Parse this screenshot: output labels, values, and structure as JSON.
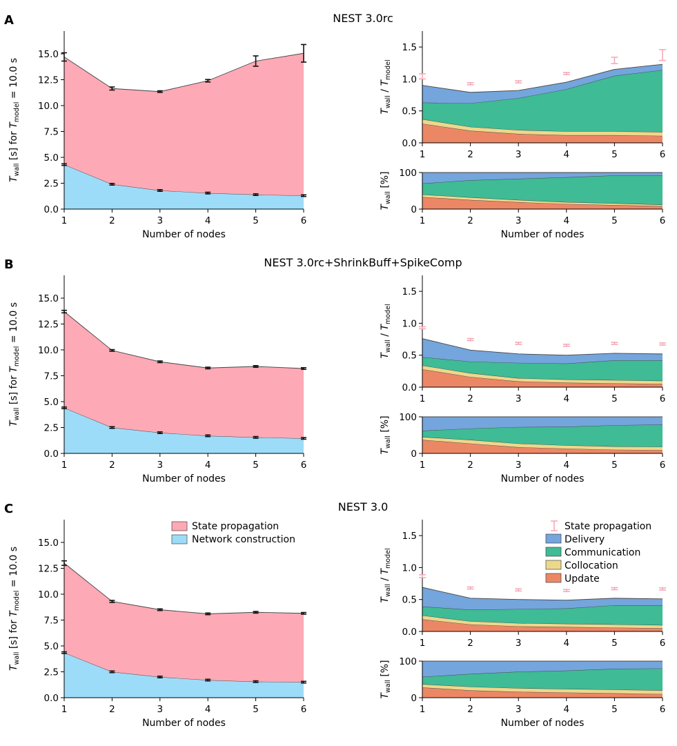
{
  "colors": {
    "state_propagation": "#fea9b6",
    "network_construction": "#9ddcf9",
    "delivery": "#74a5dc",
    "communication": "#3fbb96",
    "collocation": "#ecd88c",
    "update": "#ec8766",
    "errorbar_left": "#111111",
    "errorbar_right": "#f6a8b8",
    "outline": "#444444"
  },
  "shared_labels": {
    "x_label": "Number of nodes",
    "left_y_label": {
      "t": "T",
      "wall": "wall",
      "mid": " [s] for ",
      "t2": "T",
      "model": "model",
      "eq": " = 10.0 s"
    },
    "ratio_y_label": {
      "t": "T",
      "wall": "wall",
      "slash": " / ",
      "t2": "T",
      "model": "model"
    },
    "pct_y_label": {
      "t": "T",
      "wall": "wall",
      "unit": " [%]"
    }
  },
  "legends": {
    "left": [
      "State propagation",
      "Network construction"
    ],
    "right": [
      "State propagation",
      "Delivery",
      "Communication",
      "Collocation",
      "Update"
    ]
  },
  "chart_data": [
    {
      "id": "A-left",
      "panel": "A",
      "title": "NEST 3.0rc",
      "type": "area",
      "x": [
        1,
        2,
        3,
        4,
        5,
        6
      ],
      "xlim": [
        1,
        6
      ],
      "ylim": [
        0,
        17.2
      ],
      "yticks": [
        0.0,
        2.5,
        5.0,
        7.5,
        10.0,
        12.5,
        15.0
      ],
      "ytick_labels": [
        "0.0",
        "2.5",
        "5.0",
        "7.5",
        "10.0",
        "12.5",
        "15.0"
      ],
      "series": [
        {
          "name": "Network construction",
          "values": [
            4.3,
            2.4,
            1.8,
            1.55,
            1.4,
            1.3
          ],
          "err": [
            0.07,
            0.06,
            0.05,
            0.04,
            0.04,
            0.03
          ]
        },
        {
          "name": "State propagation",
          "values": [
            10.4,
            9.25,
            9.55,
            10.85,
            12.9,
            13.75
          ],
          "err": [
            0.4,
            0.15,
            0.08,
            0.12,
            0.5,
            0.85
          ]
        }
      ]
    },
    {
      "id": "A-ratio",
      "panel": "A",
      "type": "area",
      "x": [
        1,
        2,
        3,
        4,
        5,
        6
      ],
      "xlim": [
        1,
        6
      ],
      "ylim": [
        0,
        1.75
      ],
      "yticks": [
        0.0,
        0.5,
        1.0,
        1.5
      ],
      "ytick_labels": [
        "0.0",
        "0.5",
        "1.0",
        "1.5"
      ],
      "series": [
        {
          "name": "Update",
          "values": [
            0.3,
            0.19,
            0.14,
            0.12,
            0.12,
            0.11
          ]
        },
        {
          "name": "Collocation",
          "values": [
            0.07,
            0.06,
            0.06,
            0.06,
            0.06,
            0.06
          ]
        },
        {
          "name": "Communication",
          "values": [
            0.26,
            0.37,
            0.5,
            0.66,
            0.87,
            0.97
          ]
        },
        {
          "name": "Delivery",
          "values": [
            0.27,
            0.17,
            0.12,
            0.11,
            0.1,
            0.09
          ]
        }
      ],
      "state_propagation": {
        "values": [
          1.04,
          0.925,
          0.955,
          1.085,
          1.29,
          1.375
        ],
        "err": [
          0.04,
          0.015,
          0.008,
          0.012,
          0.05,
          0.085
        ]
      }
    },
    {
      "id": "A-pct",
      "panel": "A",
      "type": "area",
      "x": [
        1,
        2,
        3,
        4,
        5,
        6
      ],
      "xlim": [
        1,
        6
      ],
      "ylim": [
        0,
        100
      ],
      "yticks": [
        0,
        100
      ],
      "ytick_labels": [
        "0",
        "100"
      ],
      "series": [
        {
          "name": "Update",
          "values": [
            33,
            25,
            19,
            14,
            11,
            8
          ]
        },
        {
          "name": "Collocation",
          "values": [
            7,
            7,
            6,
            5,
            5,
            4
          ]
        },
        {
          "name": "Communication",
          "values": [
            30,
            47,
            58,
            68,
            76,
            80
          ]
        },
        {
          "name": "Delivery",
          "values": [
            30,
            21,
            17,
            13,
            8,
            8
          ]
        }
      ]
    },
    {
      "id": "B-left",
      "panel": "B",
      "title": "NEST 3.0rc+ShrinkBuff+SpikeComp",
      "type": "area",
      "x": [
        1,
        2,
        3,
        4,
        5,
        6
      ],
      "xlim": [
        1,
        6
      ],
      "ylim": [
        0,
        17.2
      ],
      "yticks": [
        0.0,
        2.5,
        5.0,
        7.5,
        10.0,
        12.5,
        15.0
      ],
      "ytick_labels": [
        "0.0",
        "2.5",
        "5.0",
        "7.5",
        "10.0",
        "12.5",
        "15.0"
      ],
      "series": [
        {
          "name": "Network construction",
          "values": [
            4.4,
            2.5,
            2.0,
            1.7,
            1.55,
            1.45
          ],
          "err": [
            0.06,
            0.05,
            0.04,
            0.04,
            0.03,
            0.03
          ]
        },
        {
          "name": "State propagation",
          "values": [
            9.3,
            7.45,
            6.85,
            6.55,
            6.85,
            6.75
          ],
          "err": [
            0.12,
            0.08,
            0.07,
            0.07,
            0.08,
            0.08
          ]
        }
      ]
    },
    {
      "id": "B-ratio",
      "panel": "B",
      "type": "area",
      "x": [
        1,
        2,
        3,
        4,
        5,
        6
      ],
      "xlim": [
        1,
        6
      ],
      "ylim": [
        0,
        1.75
      ],
      "yticks": [
        0.0,
        0.5,
        1.0,
        1.5
      ],
      "ytick_labels": [
        "0.0",
        "0.5",
        "1.0",
        "1.5"
      ],
      "series": [
        {
          "name": "Update",
          "values": [
            0.28,
            0.16,
            0.09,
            0.07,
            0.06,
            0.05
          ]
        },
        {
          "name": "Collocation",
          "values": [
            0.06,
            0.06,
            0.05,
            0.05,
            0.05,
            0.05
          ]
        },
        {
          "name": "Communication",
          "values": [
            0.13,
            0.18,
            0.24,
            0.25,
            0.31,
            0.32
          ]
        },
        {
          "name": "Delivery",
          "values": [
            0.29,
            0.18,
            0.14,
            0.13,
            0.11,
            0.1
          ]
        }
      ],
      "state_propagation": {
        "values": [
          0.93,
          0.745,
          0.685,
          0.655,
          0.685,
          0.675
        ],
        "err": [
          0.012,
          0.008,
          0.007,
          0.007,
          0.008,
          0.008
        ]
      }
    },
    {
      "id": "B-pct",
      "panel": "B",
      "type": "area",
      "x": [
        1,
        2,
        3,
        4,
        5,
        6
      ],
      "xlim": [
        1,
        6
      ],
      "ylim": [
        0,
        100
      ],
      "yticks": [
        0,
        100
      ],
      "ytick_labels": [
        "0",
        "100"
      ],
      "series": [
        {
          "name": "Update",
          "values": [
            37,
            27,
            17,
            13,
            10,
            9
          ]
        },
        {
          "name": "Collocation",
          "values": [
            8,
            10,
            10,
            9,
            9,
            9
          ]
        },
        {
          "name": "Communication",
          "values": [
            17,
            31,
            45,
            51,
            58,
            61
          ]
        },
        {
          "name": "Delivery",
          "values": [
            38,
            32,
            28,
            27,
            23,
            21
          ]
        }
      ]
    },
    {
      "id": "C-left",
      "panel": "C",
      "title": "NEST 3.0",
      "type": "area",
      "x": [
        1,
        2,
        3,
        4,
        5,
        6
      ],
      "xlim": [
        1,
        6
      ],
      "ylim": [
        0,
        17.2
      ],
      "yticks": [
        0.0,
        2.5,
        5.0,
        7.5,
        10.0,
        12.5,
        15.0
      ],
      "ytick_labels": [
        "0.0",
        "2.5",
        "5.0",
        "7.5",
        "10.0",
        "12.5",
        "15.0"
      ],
      "series": [
        {
          "name": "Network construction",
          "values": [
            4.35,
            2.5,
            2.0,
            1.7,
            1.55,
            1.5
          ],
          "err": [
            0.06,
            0.05,
            0.04,
            0.04,
            0.03,
            0.03
          ]
        },
        {
          "name": "State propagation",
          "values": [
            8.65,
            6.8,
            6.5,
            6.4,
            6.7,
            6.65
          ],
          "err": [
            0.22,
            0.1,
            0.07,
            0.07,
            0.08,
            0.08
          ]
        }
      ]
    },
    {
      "id": "C-ratio",
      "panel": "C",
      "type": "area",
      "x": [
        1,
        2,
        3,
        4,
        5,
        6
      ],
      "xlim": [
        1,
        6
      ],
      "ylim": [
        0,
        1.75
      ],
      "yticks": [
        0.0,
        0.5,
        1.0,
        1.5
      ],
      "ytick_labels": [
        "0.0",
        "0.5",
        "1.0",
        "1.5"
      ],
      "series": [
        {
          "name": "Update",
          "values": [
            0.19,
            0.11,
            0.08,
            0.07,
            0.06,
            0.05
          ]
        },
        {
          "name": "Collocation",
          "values": [
            0.06,
            0.05,
            0.05,
            0.05,
            0.05,
            0.05
          ]
        },
        {
          "name": "Communication",
          "values": [
            0.14,
            0.18,
            0.22,
            0.24,
            0.3,
            0.31
          ]
        },
        {
          "name": "Delivery",
          "values": [
            0.3,
            0.18,
            0.15,
            0.13,
            0.11,
            0.1
          ]
        }
      ],
      "state_propagation": {
        "values": [
          0.865,
          0.68,
          0.65,
          0.64,
          0.67,
          0.665
        ],
        "err": [
          0.022,
          0.01,
          0.007,
          0.007,
          0.008,
          0.008
        ]
      }
    },
    {
      "id": "C-pct",
      "panel": "C",
      "type": "area",
      "x": [
        1,
        2,
        3,
        4,
        5,
        6
      ],
      "xlim": [
        1,
        6
      ],
      "ylim": [
        0,
        100
      ],
      "yticks": [
        0,
        100
      ],
      "ytick_labels": [
        "0",
        "100"
      ],
      "series": [
        {
          "name": "Update",
          "values": [
            28,
            20,
            16,
            14,
            12,
            10
          ]
        },
        {
          "name": "Collocation",
          "values": [
            9,
            10,
            10,
            10,
            10,
            10
          ]
        },
        {
          "name": "Communication",
          "values": [
            20,
            35,
            45,
            50,
            57,
            60
          ]
        },
        {
          "name": "Delivery",
          "values": [
            43,
            35,
            29,
            26,
            21,
            20
          ]
        }
      ]
    }
  ],
  "panels": [
    {
      "label": "A",
      "title": "NEST 3.0rc"
    },
    {
      "label": "B",
      "title": "NEST 3.0rc+ShrinkBuff+SpikeComp"
    },
    {
      "label": "C",
      "title": "NEST 3.0"
    }
  ]
}
